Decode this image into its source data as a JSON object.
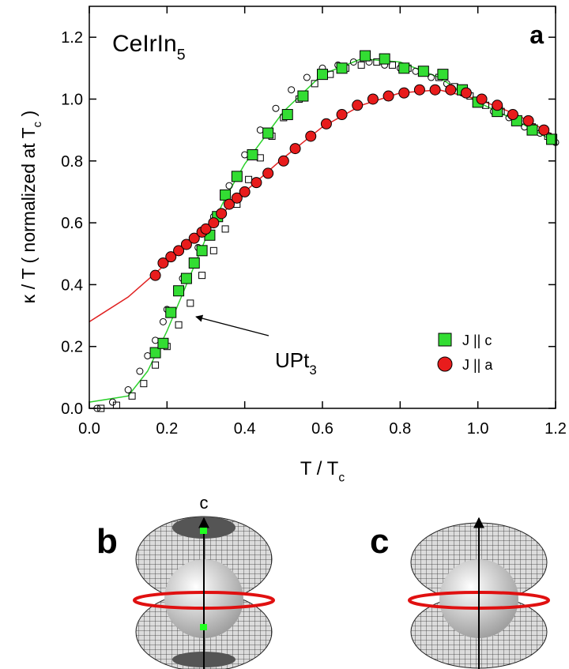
{
  "chart_data": {
    "type": "scatter",
    "annotations": [
      [
        {
          "t": "CeIrIn"
        },
        {
          "t": "5",
          "sub": true
        }
      ],
      [
        {
          "t": "a"
        }
      ],
      [
        {
          "t": "UPt"
        },
        {
          "t": "3",
          "sub": true
        }
      ]
    ],
    "xlabel": [
      {
        "t": "T / T"
      },
      {
        "t": "c",
        "sub": true
      }
    ],
    "ylabel": [
      {
        "t": "κ / T ( normalized at T"
      },
      {
        "t": "c",
        "sub": true
      },
      {
        "t": " )"
      }
    ],
    "xlim": [
      0,
      1.2
    ],
    "ylim": [
      0,
      1.3
    ],
    "xticks": [
      {
        "value": 0,
        "label": "0.0"
      },
      0.2,
      0.4,
      0.6,
      0.8,
      {
        "value": 1,
        "label": "1.0"
      },
      1.2
    ],
    "yticks": [
      {
        "value": 0,
        "label": "0.0"
      },
      0.2,
      0.4,
      0.6,
      0.8,
      {
        "value": 1,
        "label": "1.0"
      },
      1.2
    ],
    "legend": "lower right",
    "series": [
      {
        "mode": "line",
        "color": "#2bd12b",
        "x": [
          0,
          0.1,
          0.15,
          0.2,
          0.25,
          0.3,
          0.35,
          0.4,
          0.5,
          0.6,
          0.7,
          0.8,
          0.9,
          1.0,
          1.1,
          1.2
        ],
        "values": [
          0.02,
          0.04,
          0.12,
          0.25,
          0.4,
          0.55,
          0.68,
          0.79,
          0.96,
          1.08,
          1.13,
          1.12,
          1.07,
          0.99,
          0.93,
          0.86
        ]
      },
      {
        "mode": "line",
        "color": "#e02020",
        "x": [
          0,
          0.1,
          0.2,
          0.3,
          0.4,
          0.5,
          0.6,
          0.7,
          0.8,
          0.9,
          1.0,
          1.1,
          1.2
        ],
        "values": [
          0.28,
          0.36,
          0.47,
          0.58,
          0.7,
          0.81,
          0.91,
          0.98,
          1.02,
          1.03,
          1.0,
          0.95,
          0.88
        ]
      },
      {
        "mode": "markers",
        "marker": "circle",
        "filled": false,
        "color": "#000000",
        "x": [
          0.02,
          0.06,
          0.1,
          0.13,
          0.15,
          0.17,
          0.19,
          0.2,
          0.24,
          0.28,
          0.32,
          0.36,
          0.4,
          0.44,
          0.48,
          0.52,
          0.56,
          0.6,
          0.64,
          0.68,
          0.72,
          0.76,
          0.8,
          0.84,
          0.88,
          0.92,
          0.96,
          1.0,
          1.04,
          1.08,
          1.12,
          1.16,
          1.2
        ],
        "values": [
          0.0,
          0.02,
          0.06,
          0.12,
          0.17,
          0.22,
          0.28,
          0.32,
          0.42,
          0.52,
          0.62,
          0.72,
          0.82,
          0.9,
          0.97,
          1.03,
          1.07,
          1.1,
          1.11,
          1.12,
          1.12,
          1.11,
          1.1,
          1.09,
          1.07,
          1.05,
          1.02,
          0.99,
          0.96,
          0.94,
          0.91,
          0.89,
          0.86
        ]
      },
      {
        "mode": "markers",
        "marker": "square",
        "filled": false,
        "color": "#000000",
        "x": [
          0.03,
          0.07,
          0.11,
          0.14,
          0.17,
          0.2,
          0.23,
          0.26,
          0.29,
          0.32,
          0.35,
          0.38,
          0.41,
          0.44,
          0.47,
          0.5,
          0.54,
          0.58,
          0.62,
          0.66,
          0.7,
          0.74,
          0.78,
          0.82,
          0.86,
          0.9,
          0.94,
          0.98,
          1.02,
          1.06,
          1.1,
          1.14,
          1.18
        ],
        "values": [
          0.0,
          0.01,
          0.04,
          0.08,
          0.14,
          0.2,
          0.27,
          0.34,
          0.43,
          0.51,
          0.58,
          0.66,
          0.74,
          0.81,
          0.88,
          0.94,
          1.0,
          1.05,
          1.08,
          1.1,
          1.11,
          1.12,
          1.11,
          1.1,
          1.09,
          1.07,
          1.04,
          1.01,
          0.98,
          0.96,
          0.93,
          0.91,
          0.88
        ]
      },
      {
        "name": "J || c",
        "mode": "markers",
        "marker": "square",
        "filled": true,
        "color": "#33dd33",
        "x": [
          0.17,
          0.19,
          0.21,
          0.23,
          0.25,
          0.27,
          0.29,
          0.31,
          0.33,
          0.35,
          0.38,
          0.42,
          0.46,
          0.51,
          0.55,
          0.6,
          0.65,
          0.71,
          0.76,
          0.81,
          0.86,
          0.91,
          0.96,
          1.0,
          1.05,
          1.1,
          1.14,
          1.19
        ],
        "values": [
          0.18,
          0.21,
          0.31,
          0.38,
          0.42,
          0.47,
          0.51,
          0.56,
          0.62,
          0.69,
          0.75,
          0.82,
          0.89,
          0.95,
          1.01,
          1.08,
          1.1,
          1.14,
          1.13,
          1.1,
          1.09,
          1.08,
          1.03,
          0.99,
          0.96,
          0.93,
          0.9,
          0.87
        ]
      },
      {
        "name": "J || a",
        "mode": "markers",
        "marker": "circle",
        "filled": true,
        "color": "#e81c1c",
        "x": [
          0.17,
          0.19,
          0.21,
          0.23,
          0.25,
          0.27,
          0.29,
          0.3,
          0.32,
          0.34,
          0.36,
          0.38,
          0.4,
          0.43,
          0.46,
          0.5,
          0.53,
          0.57,
          0.61,
          0.65,
          0.69,
          0.73,
          0.77,
          0.81,
          0.85,
          0.89,
          0.93,
          0.97,
          1.01,
          1.05,
          1.09,
          1.13,
          1.17
        ],
        "values": [
          0.43,
          0.47,
          0.49,
          0.51,
          0.53,
          0.55,
          0.57,
          0.58,
          0.6,
          0.63,
          0.66,
          0.68,
          0.7,
          0.73,
          0.76,
          0.8,
          0.84,
          0.88,
          0.92,
          0.95,
          0.98,
          1.0,
          1.01,
          1.02,
          1.03,
          1.03,
          1.03,
          1.02,
          1.0,
          0.98,
          0.95,
          0.93,
          0.9
        ]
      }
    ]
  },
  "diagrams": [
    {
      "label": "b",
      "axis_label": "c"
    },
    {
      "label": "c"
    }
  ]
}
